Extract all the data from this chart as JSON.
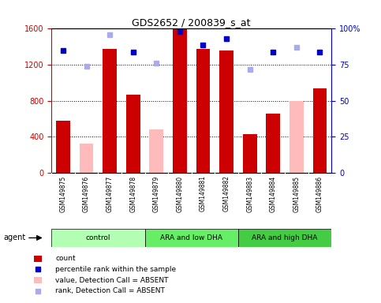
{
  "title": "GDS2652 / 200839_s_at",
  "samples": [
    "GSM149875",
    "GSM149876",
    "GSM149877",
    "GSM149878",
    "GSM149879",
    "GSM149880",
    "GSM149881",
    "GSM149882",
    "GSM149883",
    "GSM149884",
    "GSM149885",
    "GSM149886"
  ],
  "counts": [
    580,
    null,
    1380,
    870,
    null,
    1600,
    1380,
    1360,
    430,
    660,
    null,
    940
  ],
  "absent_values": [
    null,
    320,
    null,
    null,
    480,
    null,
    null,
    null,
    null,
    null,
    800,
    null
  ],
  "percentile_ranks_pct": [
    85,
    null,
    null,
    84,
    null,
    98,
    89,
    93,
    null,
    84,
    null,
    84
  ],
  "absent_ranks_pct": [
    null,
    74,
    96,
    null,
    76,
    null,
    null,
    null,
    72,
    null,
    87,
    null
  ],
  "groups": [
    {
      "label": "control",
      "start": 0,
      "end": 4,
      "color": "#b3ffb3"
    },
    {
      "label": "ARA and low DHA",
      "start": 4,
      "end": 8,
      "color": "#66ee66"
    },
    {
      "label": "ARA and high DHA",
      "start": 8,
      "end": 12,
      "color": "#44cc44"
    }
  ],
  "ylim_left": [
    0,
    1600
  ],
  "ylim_right": [
    0,
    100
  ],
  "left_yticks": [
    0,
    400,
    800,
    1200,
    1600
  ],
  "right_yticks": [
    0,
    25,
    50,
    75,
    100
  ],
  "bar_color": "#cc0000",
  "absent_bar_color": "#ffbbbb",
  "rank_color": "#0000cc",
  "absent_rank_color": "#aaaaee",
  "bg_color": "#ffffff",
  "label_bg_color": "#cccccc",
  "gridline_color": "black"
}
